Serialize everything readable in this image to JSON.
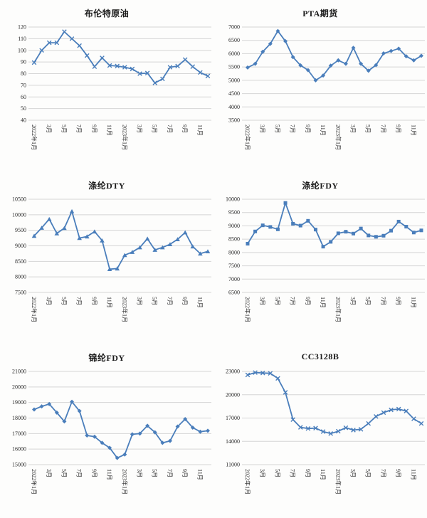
{
  "page": {
    "background": "#FDFDFC"
  },
  "style": {
    "line_color": "#4A7EBB",
    "grid_color": "#D5D5D5",
    "text_color": "#2B2B2B",
    "title_color": "#1A1A1A"
  },
  "chart_data": [
    {
      "type": "line",
      "title": "布伦特原油",
      "marker": "x",
      "ylim": [
        40,
        120
      ],
      "ystep": 10,
      "grid": true,
      "legend": false,
      "x_tick_labels": [
        "2022年1月",
        "3月",
        "5月",
        "7月",
        "9月",
        "11月",
        "2023年1月",
        "3月",
        "5月",
        "7月",
        "9月",
        "11月"
      ],
      "values": [
        89.5,
        100,
        106.5,
        106.5,
        116,
        110,
        104,
        95.5,
        86,
        93.5,
        87,
        86.5,
        85.5,
        84,
        80,
        80.5,
        72,
        75.5,
        85.5,
        86.5,
        92,
        86,
        81,
        78
      ]
    },
    {
      "type": "line",
      "title": "PTA期货",
      "marker": "diamond",
      "ylim": [
        3500,
        7000
      ],
      "ystep": 500,
      "grid": true,
      "legend": false,
      "x_tick_labels": [
        "2022年1月",
        "3月",
        "5月",
        "7月",
        "9月",
        "11月",
        "2023年1月",
        "3月",
        "5月",
        "7月",
        "9月",
        "11月"
      ],
      "values": [
        5480,
        5620,
        6070,
        6370,
        6850,
        6470,
        5870,
        5560,
        5380,
        5000,
        5180,
        5550,
        5750,
        5620,
        6220,
        5620,
        5360,
        5570,
        6010,
        6100,
        6190,
        5900,
        5750,
        5920
      ]
    },
    {
      "type": "line",
      "title": "涤纶DTY",
      "marker": "triangle",
      "ylim": [
        7500,
        10500
      ],
      "ystep": 500,
      "grid": true,
      "legend": false,
      "x_tick_labels": [
        "2022年1月",
        "3月",
        "5月",
        "7月",
        "9月",
        "11月",
        "2023年1月",
        "3月",
        "5月",
        "7月",
        "9月",
        "11月"
      ],
      "values": [
        9320,
        9580,
        9860,
        9400,
        9570,
        10110,
        9250,
        9300,
        9460,
        9170,
        8250,
        8270,
        8700,
        8800,
        8950,
        9230,
        8870,
        8950,
        9050,
        9210,
        9430,
        8980,
        8750,
        8820
      ]
    },
    {
      "type": "line",
      "title": "涤纶FDY",
      "marker": "square",
      "ylim": [
        6500,
        10000
      ],
      "ystep": 500,
      "grid": true,
      "legend": false,
      "x_tick_labels": [
        "2022年1月",
        "3月",
        "5月",
        "7月",
        "9月",
        "11月",
        "2023年1月",
        "3月",
        "5月",
        "7月",
        "9月",
        "11月"
      ],
      "values": [
        8330,
        8790,
        9020,
        8960,
        8870,
        9860,
        9080,
        9010,
        9190,
        8860,
        8220,
        8400,
        8720,
        8780,
        8710,
        8900,
        8640,
        8590,
        8630,
        8820,
        9160,
        8970,
        8750,
        8830
      ]
    },
    {
      "type": "line",
      "title": "锦纶FDY",
      "marker": "diamond",
      "ylim": [
        15000,
        21000
      ],
      "ystep": 1000,
      "grid": true,
      "legend": false,
      "x_tick_labels": [
        "2022年1月",
        "3月",
        "5月",
        "7月",
        "9月",
        "11月",
        "2023年1月",
        "3月",
        "5月",
        "7月",
        "9月",
        "11月"
      ],
      "values": [
        18550,
        18750,
        18900,
        18350,
        17780,
        19050,
        18450,
        16880,
        16800,
        16400,
        16080,
        15430,
        15650,
        16950,
        17000,
        17500,
        17080,
        16400,
        16530,
        17450,
        17930,
        17380,
        17120,
        17180
      ]
    },
    {
      "type": "line",
      "title": "CC3128B",
      "marker": "x",
      "ylim": [
        11000,
        23000
      ],
      "ystep": 3000,
      "grid": true,
      "legend": false,
      "x_tick_labels": [
        "2022年1月",
        "3月",
        "5月",
        "7月",
        "9月",
        "11月",
        "2023年1月",
        "3月",
        "5月",
        "7月",
        "9月",
        "11月"
      ],
      "values": [
        22550,
        22850,
        22800,
        22750,
        22100,
        20300,
        16800,
        15800,
        15650,
        15700,
        15250,
        15000,
        15300,
        15750,
        15450,
        15550,
        16300,
        17200,
        17700,
        18050,
        18150,
        17900,
        16900,
        16300
      ]
    }
  ]
}
